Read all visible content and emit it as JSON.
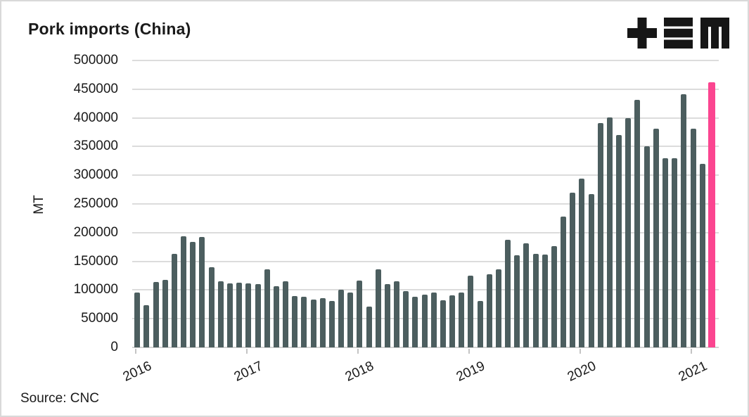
{
  "header": {
    "logo": {
      "name": "tem-logo",
      "glyphs": [
        "plus-icon",
        "triple-bar-icon",
        "m-icon"
      ],
      "color": "#161616"
    }
  },
  "colors": {
    "bar": "#4C5E5F",
    "highlight": "#FB4590",
    "gridline": "#DCDCDC",
    "axis_line": "#D2D2D2",
    "text": "#1A1A1A",
    "tick": "#C4C4C4",
    "border": "#D9D9D9",
    "background": "#FFFFFF"
  },
  "chart_data": {
    "type": "bar",
    "title": "Pork imports (China)",
    "ylabel": "MT",
    "source": "Source: CNC",
    "ylim": [
      0,
      500000
    ],
    "y_ticks": [
      0,
      50000,
      100000,
      150000,
      200000,
      250000,
      300000,
      350000,
      400000,
      450000,
      500000
    ],
    "x_tick_labels": [
      "2016",
      "2017",
      "2018",
      "2019",
      "2020",
      "2021"
    ],
    "grid": "horizontal",
    "legend": "none",
    "highlight_index": 62,
    "x": [
      "Jan 2016",
      "Feb 2016",
      "Mar 2016",
      "Apr 2016",
      "May 2016",
      "Jun 2016",
      "Jul 2016",
      "Aug 2016",
      "Sep 2016",
      "Oct 2016",
      "Nov 2016",
      "Dec 2016",
      "Jan 2017",
      "Feb 2017",
      "Mar 2017",
      "Apr 2017",
      "May 2017",
      "Jun 2017",
      "Jul 2017",
      "Aug 2017",
      "Sep 2017",
      "Oct 2017",
      "Nov 2017",
      "Dec 2017",
      "Jan 2018",
      "Feb 2018",
      "Mar 2018",
      "Apr 2018",
      "May 2018",
      "Jun 2018",
      "Jul 2018",
      "Aug 2018",
      "Sep 2018",
      "Oct 2018",
      "Nov 2018",
      "Dec 2018",
      "Jan 2019",
      "Feb 2019",
      "Mar 2019",
      "Apr 2019",
      "May 2019",
      "Jun 2019",
      "Jul 2019",
      "Aug 2019",
      "Sep 2019",
      "Oct 2019",
      "Nov 2019",
      "Dec 2019",
      "Jan 2020",
      "Feb 2020",
      "Mar 2020",
      "Apr 2020",
      "May 2020",
      "Jun 2020",
      "Jul 2020",
      "Aug 2020",
      "Sep 2020",
      "Oct 2020",
      "Nov 2020",
      "Dec 2020",
      "Jan 2021",
      "Feb 2021",
      "Mar 2021"
    ],
    "values": [
      96000,
      73000,
      114000,
      118000,
      163000,
      194000,
      184000,
      193000,
      140000,
      115000,
      112000,
      113000,
      111000,
      110000,
      136000,
      107000,
      115000,
      89000,
      88000,
      83000,
      86000,
      81000,
      100000,
      95000,
      116000,
      71000,
      136000,
      110000,
      115000,
      98000,
      88000,
      92000,
      95000,
      82000,
      91000,
      95000,
      125000,
      81000,
      128000,
      136000,
      187000,
      161000,
      182000,
      163000,
      162000,
      177000,
      228000,
      270000,
      294000,
      267000,
      391000,
      401000,
      370000,
      400000,
      431000,
      350000,
      381000,
      330000,
      330000,
      441000,
      381000,
      320000,
      462000
    ]
  }
}
